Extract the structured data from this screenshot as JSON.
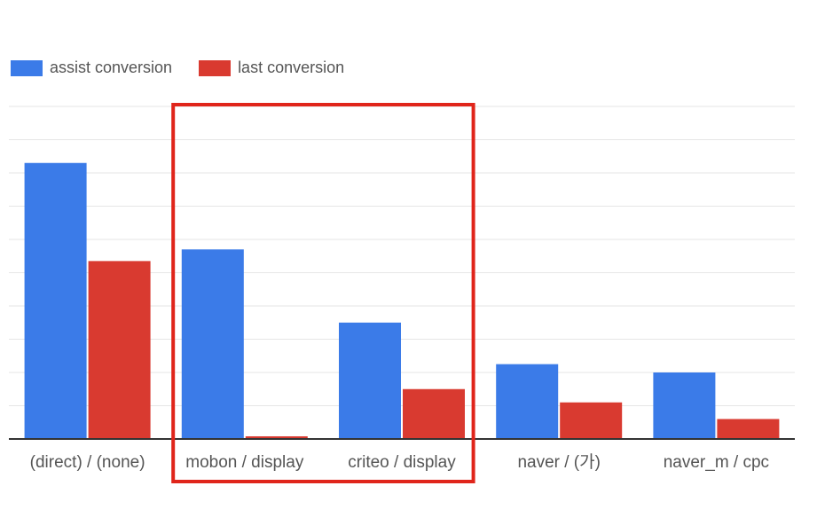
{
  "chart_data": {
    "type": "bar",
    "categories": [
      "(direct) / (none)",
      "mobon / display",
      "criteo / display",
      "naver / (가)",
      "naver_m / cpc"
    ],
    "series": [
      {
        "name": "assist conversion",
        "color": "#3b7be8",
        "values": [
          8.3,
          5.7,
          3.5,
          2.25,
          2.0
        ]
      },
      {
        "name": "last conversion",
        "color": "#d93a30",
        "values": [
          5.35,
          0.08,
          1.5,
          1.1,
          0.6
        ]
      }
    ],
    "ylim": [
      0,
      10
    ],
    "grid": true,
    "legend": "top-left",
    "highlight": {
      "categories": [
        "mobon / display",
        "criteo / display"
      ],
      "color": "#e0251b"
    }
  }
}
